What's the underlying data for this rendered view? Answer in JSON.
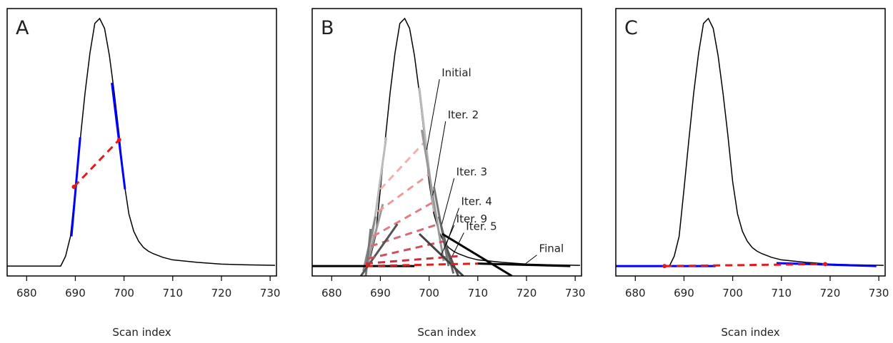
{
  "chart_data": [
    {
      "type": "line",
      "panel_label": "A",
      "xlabel": "Scan index",
      "xlim": [
        676,
        731.3
      ],
      "ylim": [
        -0.04,
        1.04
      ],
      "xticks": [
        680,
        690,
        700,
        710,
        720,
        730
      ],
      "curve": {
        "color": "#000000",
        "x": [
          676,
          687,
          688,
          689,
          690,
          691,
          692,
          693,
          694,
          695,
          696,
          697,
          698,
          699,
          700,
          701,
          702,
          703,
          704,
          705,
          706,
          708,
          710,
          715,
          720,
          725,
          731
        ],
        "values": [
          0,
          0,
          0.04,
          0.12,
          0.31,
          0.51,
          0.7,
          0.86,
          0.98,
          1.0,
          0.96,
          0.85,
          0.7,
          0.53,
          0.34,
          0.21,
          0.14,
          0.1,
          0.075,
          0.06,
          0.05,
          0.035,
          0.025,
          0.015,
          0.008,
          0.005,
          0.003
        ]
      },
      "overlays": [
        {
          "color": "#0000ff",
          "width": 3,
          "x": [
            689.2,
            691
          ],
          "values": [
            0.12,
            0.52
          ]
        },
        {
          "color": "#0000ff",
          "width": 3,
          "x": [
            697.5,
            700.2
          ],
          "values": [
            0.74,
            0.31
          ]
        },
        {
          "color": "#e41a1c",
          "width": 3,
          "dash": true,
          "points": true,
          "x": [
            689.7,
            699
          ],
          "values": [
            0.32,
            0.51
          ]
        }
      ]
    },
    {
      "type": "line",
      "panel_label": "B",
      "xlabel": "Scan index",
      "xlim": [
        676,
        731.3
      ],
      "ylim": [
        -0.04,
        1.04
      ],
      "xticks": [
        680,
        690,
        700,
        710,
        720,
        730
      ],
      "curve": {
        "color": "#000000",
        "x": [
          676,
          687,
          688,
          689,
          690,
          691,
          692,
          693,
          694,
          695,
          696,
          697,
          698,
          699,
          700,
          701,
          702,
          703,
          704,
          705,
          706,
          708,
          710,
          715,
          720,
          725,
          731
        ],
        "values": [
          0,
          0,
          0.04,
          0.12,
          0.31,
          0.51,
          0.7,
          0.86,
          0.98,
          1.0,
          0.96,
          0.85,
          0.7,
          0.53,
          0.34,
          0.21,
          0.14,
          0.1,
          0.075,
          0.06,
          0.05,
          0.035,
          0.025,
          0.015,
          0.008,
          0.005,
          0.003
        ]
      },
      "overlays": [
        {
          "color": "#bbbbbb",
          "width": 3,
          "x": [
            687.5,
            691.2
          ],
          "values": [
            0.0,
            0.52
          ]
        },
        {
          "color": "#f4b0b0",
          "width": 3,
          "dash": true,
          "x": [
            690,
            699
          ],
          "values": [
            0.31,
            0.5
          ]
        },
        {
          "color": "#bbbbbb",
          "width": 3,
          "label": "Initial",
          "x": [
            698,
            701
          ],
          "values": [
            0.72,
            0.22
          ]
        },
        {
          "color": "#999999",
          "width": 3,
          "x": [
            687,
            690.5
          ],
          "values": [
            -0.02,
            0.25
          ]
        },
        {
          "color": "#ee9a9a",
          "width": 3,
          "dash": true,
          "x": [
            689.5,
            700
          ],
          "values": [
            0.22,
            0.37
          ]
        },
        {
          "color": "#999999",
          "width": 3,
          "label": "Iter. 2",
          "x": [
            698.5,
            703
          ],
          "values": [
            0.55,
            0.02
          ]
        },
        {
          "color": "#888888",
          "width": 3,
          "x": [
            686.5,
            689
          ],
          "values": [
            -0.02,
            0.2
          ]
        },
        {
          "color": "#e07d85",
          "width": 3,
          "dash": true,
          "x": [
            688.5,
            701
          ],
          "values": [
            0.12,
            0.26
          ]
        },
        {
          "color": "#777777",
          "width": 3,
          "label": "Iter. 3",
          "x": [
            701,
            704
          ],
          "values": [
            0.32,
            0.0
          ]
        },
        {
          "color": "#777777",
          "width": 3,
          "x": [
            687,
            688
          ],
          "values": [
            -0.04,
            0.15
          ]
        },
        {
          "color": "#d86a75",
          "width": 3,
          "dash": true,
          "x": [
            688,
            702
          ],
          "values": [
            0.08,
            0.17
          ]
        },
        {
          "color": "#666666",
          "width": 3,
          "label": "Iter. 4",
          "x": [
            702,
            705
          ],
          "values": [
            0.2,
            -0.03
          ]
        },
        {
          "color": "#555555",
          "width": 3,
          "x": [
            686,
            693.5
          ],
          "values": [
            -0.04,
            0.17
          ]
        },
        {
          "color": "#cc5060",
          "width": 3,
          "dash": true,
          "x": [
            687.5,
            703
          ],
          "values": [
            0.03,
            0.1
          ]
        },
        {
          "color": "#555555",
          "width": 3,
          "label": "Iter. 5",
          "x": [
            703,
            706
          ],
          "values": [
            0.1,
            -0.04
          ]
        },
        {
          "color": "#c83040",
          "width": 3,
          "dash": true,
          "x": [
            687,
            706
          ],
          "values": [
            0.01,
            0.04
          ]
        },
        {
          "color": "#444444",
          "width": 3,
          "label": "Iter. 9",
          "x": [
            698,
            707
          ],
          "values": [
            0.13,
            -0.04
          ]
        },
        {
          "color": "#000000",
          "width": 3,
          "x": [
            676,
            697
          ],
          "values": [
            0.0,
            0.0
          ]
        },
        {
          "color": "#000000",
          "width": 3,
          "x": [
            702.7,
            717
          ],
          "values": [
            0.13,
            -0.04
          ]
        },
        {
          "color": "#e41a1c",
          "width": 3,
          "dash": true,
          "x": [
            687,
            710
          ],
          "values": [
            0.0,
            0.01
          ]
        },
        {
          "color": "#000000",
          "width": 3,
          "label": "Final",
          "x": [
            710,
            729
          ],
          "values": [
            0.01,
            0.0
          ]
        }
      ]
    },
    {
      "type": "line",
      "panel_label": "C",
      "xlabel": "Scan index",
      "xlim": [
        676,
        731.3
      ],
      "ylim": [
        -0.04,
        1.04
      ],
      "xticks": [
        680,
        690,
        700,
        710,
        720,
        730
      ],
      "curve": {
        "color": "#000000",
        "x": [
          676,
          687,
          688,
          689,
          690,
          691,
          692,
          693,
          694,
          695,
          696,
          697,
          698,
          699,
          700,
          701,
          702,
          703,
          704,
          705,
          706,
          708,
          710,
          715,
          720,
          725,
          731
        ],
        "values": [
          0,
          0,
          0.04,
          0.12,
          0.31,
          0.51,
          0.7,
          0.86,
          0.98,
          1.0,
          0.96,
          0.85,
          0.7,
          0.53,
          0.34,
          0.21,
          0.14,
          0.1,
          0.075,
          0.06,
          0.05,
          0.035,
          0.025,
          0.015,
          0.008,
          0.005,
          0.003
        ]
      },
      "overlays": [
        {
          "color": "#0000ff",
          "width": 3,
          "x": [
            676,
            696.5
          ],
          "values": [
            0.0,
            0.0
          ]
        },
        {
          "color": "#0000ff",
          "width": 3,
          "x": [
            709,
            729.5
          ],
          "values": [
            0.012,
            0.0
          ]
        },
        {
          "color": "#e41a1c",
          "width": 3,
          "dash": true,
          "points": true,
          "x": [
            686,
            719
          ],
          "values": [
            0.0,
            0.008
          ]
        }
      ]
    }
  ]
}
